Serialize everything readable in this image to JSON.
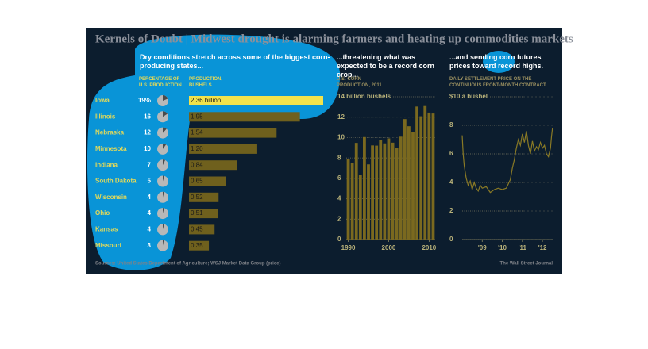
{
  "header": {
    "title": "Kernels of Doubt | Midwest drought is alarming farmers and heating up commodities markets"
  },
  "footer": {
    "source": "Sources: United States Department of Agriculture; WSJ Market Data Group (price)",
    "credit": "The Wall Street Journal"
  },
  "chart_data": [
    {
      "type": "bar",
      "orientation": "horizontal",
      "title": "Dry conditions stretch across some of the biggest corn-producing states...",
      "categories": [
        "Iowa",
        "Illinois",
        "Nebraska",
        "Minnesota",
        "Indiana",
        "South Dakota",
        "Wisconsin",
        "Ohio",
        "Kansas",
        "Missouri"
      ],
      "series": [
        {
          "name": "PERCENTAGE OF U.S. PRODUCTION",
          "color": "#4a4a4a",
          "values": [
            19,
            16,
            12,
            10,
            7,
            5,
            4,
            4,
            4,
            3
          ],
          "value_labels": [
            "19%",
            "16",
            "12",
            "10",
            "7",
            "5",
            "4",
            "4",
            "4",
            "3"
          ]
        },
        {
          "name": "PRODUCTION, BUSHELS",
          "color": "#6f601d",
          "highlight_color": "#f2e34c",
          "values": [
            2.36,
            1.95,
            1.54,
            1.2,
            0.84,
            0.65,
            0.52,
            0.51,
            0.45,
            0.35
          ],
          "value_labels": [
            "2.36 billion",
            "1.95",
            "1.54",
            "1.20",
            "0.84",
            "0.65",
            "0.52",
            "0.51",
            "0.45",
            "0.35"
          ]
        }
      ]
    },
    {
      "type": "bar",
      "orientation": "vertical",
      "title": "...threatening what was expected to be a record corn crop...",
      "subtitle": "U.S. CORN PRODUCTION, 2011",
      "color": "#7a691f",
      "x": [
        1990,
        1991,
        1992,
        1993,
        1994,
        1995,
        1996,
        1997,
        1998,
        1999,
        2000,
        2001,
        2002,
        2003,
        2004,
        2005,
        2006,
        2007,
        2008,
        2009,
        2010,
        2011
      ],
      "values": [
        7.93,
        7.47,
        9.48,
        6.34,
        10.05,
        7.37,
        9.23,
        9.21,
        9.76,
        9.43,
        9.92,
        9.5,
        8.97,
        10.09,
        11.81,
        11.11,
        10.53,
        13.04,
        12.09,
        13.09,
        12.45,
        12.36
      ],
      "xlim": [
        1989.5,
        2011.5
      ],
      "xticks": [
        1990,
        2000,
        2010
      ],
      "ylim": [
        0,
        14
      ],
      "yticks": [
        0,
        2,
        4,
        6,
        8,
        10,
        12,
        {
          "value": 14,
          "label": "14 billion bushels"
        }
      ],
      "grid": true
    },
    {
      "type": "line",
      "title": "...and sending corn futures prices toward record highs.",
      "subtitle": "DAILY SETTLEMENT PRICE ON THE CONTINUOUS FRONT-MONTH CONTRACT",
      "color": "#8a7a25",
      "x": [
        2008.0,
        2008.05,
        2008.1,
        2008.2,
        2008.3,
        2008.4,
        2008.5,
        2008.6,
        2008.7,
        2008.8,
        2008.9,
        2009.0,
        2009.2,
        2009.4,
        2009.6,
        2009.8,
        2010.0,
        2010.2,
        2010.4,
        2010.5,
        2010.6,
        2010.7,
        2010.8,
        2010.9,
        2011.0,
        2011.1,
        2011.2,
        2011.3,
        2011.4,
        2011.5,
        2011.6,
        2011.7,
        2011.8,
        2011.9,
        2012.0,
        2012.1,
        2012.2,
        2012.3,
        2012.4,
        2012.45,
        2012.5
      ],
      "values": [
        7.3,
        6.0,
        5.2,
        4.3,
        3.8,
        4.1,
        3.5,
        4.0,
        3.6,
        3.4,
        3.8,
        3.6,
        3.7,
        3.3,
        3.5,
        3.6,
        3.5,
        3.6,
        4.2,
        5.0,
        5.6,
        6.4,
        7.0,
        6.6,
        7.4,
        6.8,
        7.6,
        6.6,
        6.0,
        6.9,
        6.2,
        6.5,
        6.3,
        6.8,
        6.4,
        6.6,
        6.0,
        5.8,
        6.4,
        7.2,
        7.8
      ],
      "xlim": [
        2008.0,
        2012.55
      ],
      "xticks": [
        {
          "value": 2009,
          "label": "'09"
        },
        {
          "value": 2010,
          "label": "'10"
        },
        {
          "value": 2011,
          "label": "'11"
        },
        {
          "value": 2012,
          "label": "'12"
        }
      ],
      "ylim": [
        0,
        10
      ],
      "yticks": [
        0,
        2,
        4,
        6,
        8,
        {
          "value": 10,
          "label": "$10 a bushel"
        }
      ],
      "grid": true
    }
  ]
}
